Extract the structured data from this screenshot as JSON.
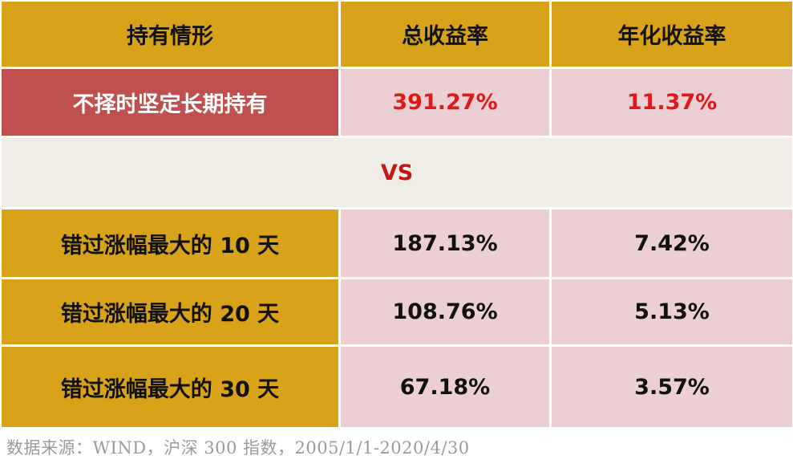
{
  "table": {
    "headers": [
      "持有情形",
      "总收益率",
      "年化收益率"
    ],
    "highlight_row": {
      "label": "不择时坚定长期持有",
      "total_return": "391.27%",
      "annualized_return": "11.37%"
    },
    "vs_label": "VS",
    "rows": [
      {
        "label": "错过涨幅最大的 10 天",
        "total_return": "187.13%",
        "annualized_return": "7.42%"
      },
      {
        "label": "错过涨幅最大的 20 天",
        "total_return": "108.76%",
        "annualized_return": "5.13%"
      },
      {
        "label": "错过涨幅最大的 30 天",
        "total_return": "67.18%",
        "annualized_return": "3.57%"
      }
    ]
  },
  "footer": {
    "source": "数据来源：WIND，沪深 300 指数，2005/1/1-2020/4/30"
  },
  "colors": {
    "header_bg": "#d8a318",
    "highlight_label_bg": "#c0504d",
    "value_cell_bg": "#eccfd2",
    "vs_row_bg": "#efede6",
    "highlight_value_text": "#e01818"
  }
}
